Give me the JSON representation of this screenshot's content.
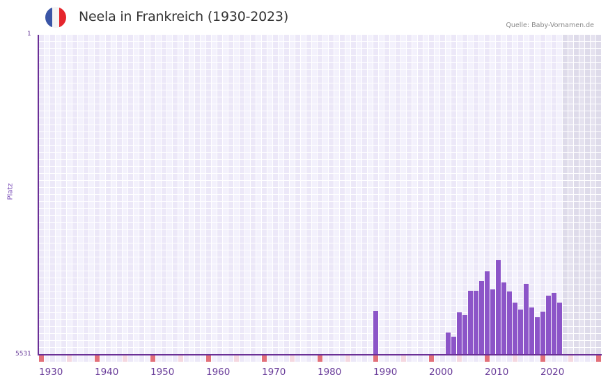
{
  "header": {
    "title": "Neela in Frankreich (1930-2023)",
    "source": "Quelle: Baby-Vornamen.de",
    "flag": {
      "name": "france-flag",
      "colors": [
        "#3a55a6",
        "#f4f4f4",
        "#e5262d"
      ]
    }
  },
  "colors": {
    "bar": "#8c55c8",
    "axis": "#6a2f96",
    "grid_a": "#ece8f8",
    "grid_b": "#f3f1fc",
    "grid_future_a": "#dedbea",
    "grid_future_b": "#e5e2ef",
    "tick_decade": "#e27079",
    "tick_half": "#f5d8e0",
    "tick_a": "#ece8f8",
    "tick_b": "#f3f1fc"
  },
  "chart_data": {
    "type": "bar",
    "title": "Neela in Frankreich (1930-2023)",
    "xlabel": "",
    "ylabel": "Platz",
    "y_axis_inverted": true,
    "ylim": [
      1,
      5531
    ],
    "y_ticks": [
      "1",
      "5531"
    ],
    "x_range": [
      1930,
      2030
    ],
    "x_ticks": [
      "1930",
      "1940",
      "1950",
      "1960",
      "1970",
      "1980",
      "1990",
      "2000",
      "2010",
      "2020"
    ],
    "grid": true,
    "shaded_future_from": 2024,
    "categories": [
      1990,
      2003,
      2004,
      2005,
      2006,
      2007,
      2008,
      2009,
      2010,
      2011,
      2012,
      2013,
      2014,
      2015,
      2016,
      2017,
      2018,
      2019,
      2020,
      2021,
      2022,
      2023
    ],
    "series": [
      {
        "name": "Platz",
        "values": [
          4774,
          5145,
          5217,
          4797,
          4845,
          4424,
          4424,
          4256,
          4087,
          4400,
          3895,
          4280,
          4436,
          4628,
          4749,
          4304,
          4713,
          4881,
          4785,
          4508,
          4460,
          4628
        ]
      }
    ]
  },
  "axis": {
    "y_top_label": "1",
    "y_bottom_label": "5531",
    "y_title": "Platz"
  }
}
